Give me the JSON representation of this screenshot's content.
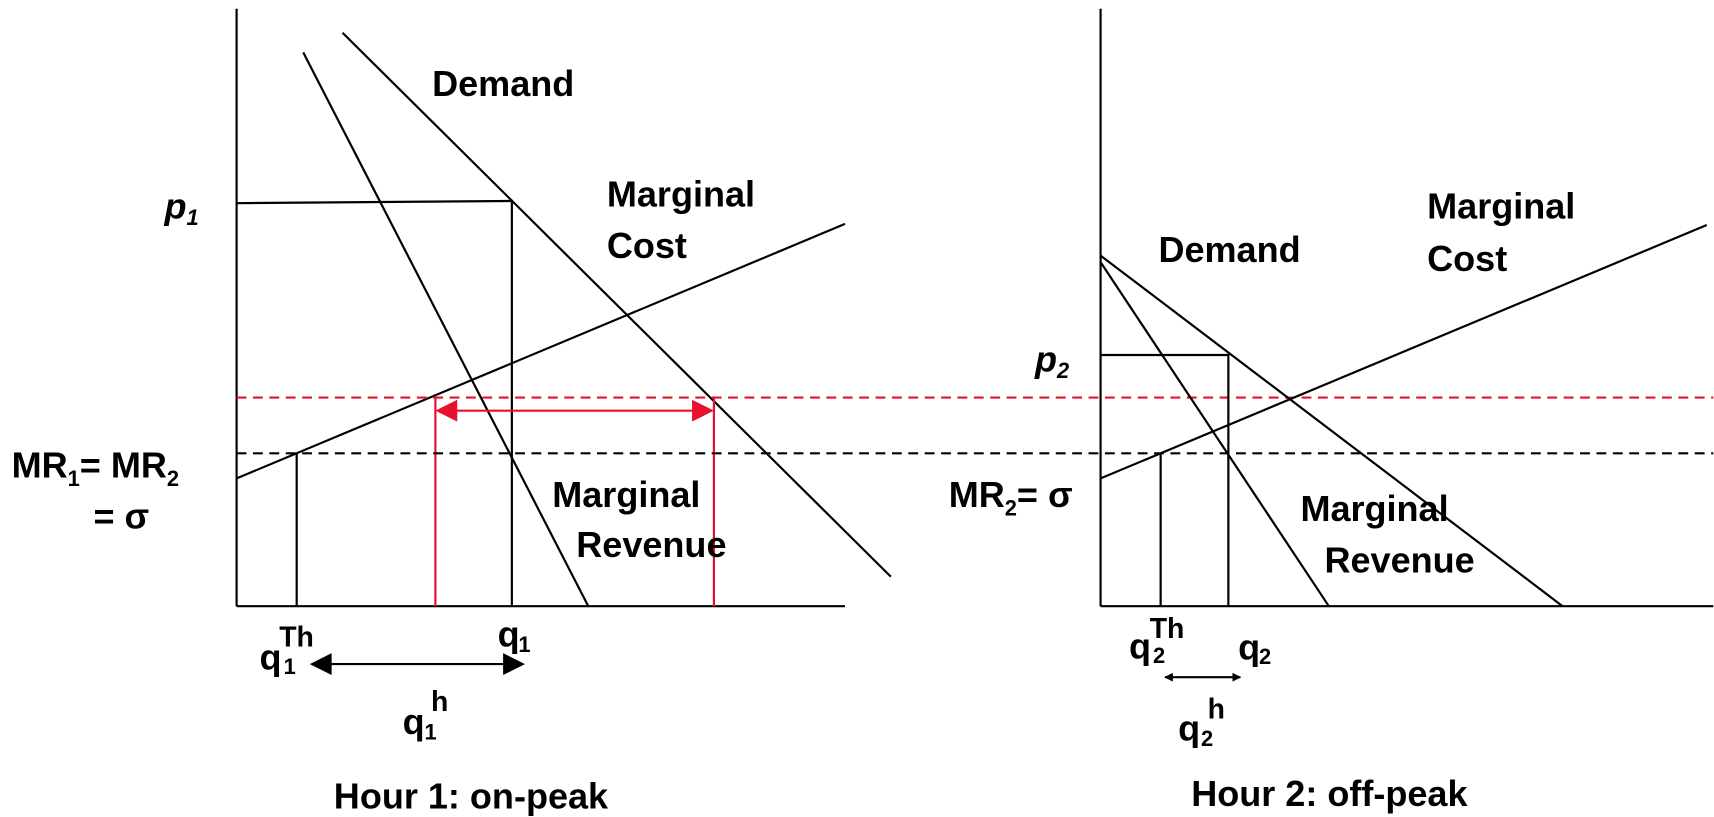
{
  "left": {
    "title": "Hour 1: on-peak",
    "demand": "Demand",
    "marginal_cost": [
      "Marginal",
      "Cost"
    ],
    "marginal_revenue": [
      "Marginal",
      "Revenue"
    ],
    "price": {
      "base": "p",
      "sub": "1"
    },
    "mr_label": {
      "parts": [
        "MR",
        "1",
        "= MR",
        "2"
      ],
      "line2": "= σ"
    },
    "q": {
      "base": "q",
      "sub": "1"
    },
    "q_th": {
      "base": "q",
      "sub": "1",
      "sup": "Th"
    },
    "q_h": {
      "base": "q",
      "sub": "1",
      "sup": "h"
    }
  },
  "right": {
    "title": "Hour 2: off-peak",
    "demand": "Demand",
    "marginal_cost": [
      "Marginal",
      "Cost"
    ],
    "marginal_revenue": [
      "Marginal",
      "Revenue"
    ],
    "price": {
      "base": "p",
      "sub": "2"
    },
    "mr_label": {
      "parts": [
        "MR",
        "2",
        "= σ"
      ]
    },
    "q": {
      "base": "q",
      "sub": "2"
    },
    "q_th": {
      "base": "q",
      "sub": "2",
      "sup": "Th"
    },
    "q_h": {
      "base": "q",
      "sub": "2",
      "sup": "h"
    }
  }
}
